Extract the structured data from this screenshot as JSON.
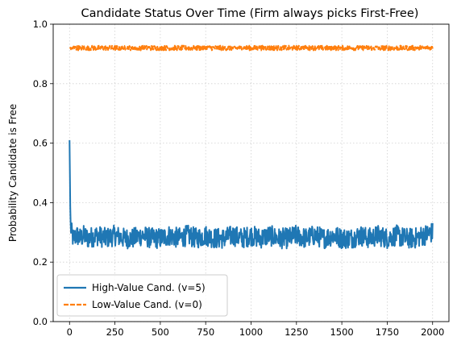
{
  "chart_data": {
    "type": "line",
    "title": "Candidate Status Over Time (Firm always picks First-Free)",
    "xlabel": "",
    "ylabel": "Probability Candidate is Free",
    "xlim": [
      -90,
      2090
    ],
    "ylim": [
      0.0,
      1.0
    ],
    "xticks": [
      0,
      250,
      500,
      750,
      1000,
      1250,
      1500,
      1750,
      2000
    ],
    "xtick_labels": [
      "0",
      "250",
      "500",
      "750",
      "1000",
      "1250",
      "1500",
      "1750",
      "2000"
    ],
    "yticks": [
      0.0,
      0.2,
      0.4,
      0.6,
      0.8,
      1.0
    ],
    "ytick_labels": [
      "0.0",
      "0.2",
      "0.4",
      "0.6",
      "0.8",
      "1.0"
    ],
    "grid": true,
    "legend_position": "lower-left",
    "series": [
      {
        "name": "High-Value Cand. (v=5)",
        "color": "#1f77b4",
        "style": "solid",
        "x": [
          0,
          5,
          10,
          20,
          40,
          60,
          80,
          100,
          150,
          200,
          250,
          300,
          350,
          400,
          450,
          500,
          550,
          600,
          650,
          700,
          750,
          800,
          850,
          900,
          950,
          1000,
          1050,
          1100,
          1150,
          1200,
          1250,
          1300,
          1350,
          1400,
          1450,
          1500,
          1550,
          1600,
          1650,
          1700,
          1750,
          1800,
          1850,
          1900,
          1950,
          2000
        ],
        "y": [
          0.61,
          0.33,
          0.3,
          0.28,
          0.29,
          0.28,
          0.29,
          0.28,
          0.29,
          0.28,
          0.29,
          0.28,
          0.28,
          0.29,
          0.28,
          0.28,
          0.29,
          0.28,
          0.29,
          0.28,
          0.29,
          0.28,
          0.28,
          0.29,
          0.28,
          0.29,
          0.28,
          0.29,
          0.28,
          0.28,
          0.29,
          0.28,
          0.29,
          0.28,
          0.29,
          0.28,
          0.28,
          0.29,
          0.28,
          0.29,
          0.28,
          0.29,
          0.28,
          0.28,
          0.29,
          0.3
        ],
        "noise": 0.035
      },
      {
        "name": "Low-Value Cand. (v=0)",
        "color": "#ff7f0e",
        "style": "dashed",
        "x": [
          0,
          2000
        ],
        "y": [
          0.92,
          0.92
        ],
        "noise": 0.008
      }
    ]
  }
}
